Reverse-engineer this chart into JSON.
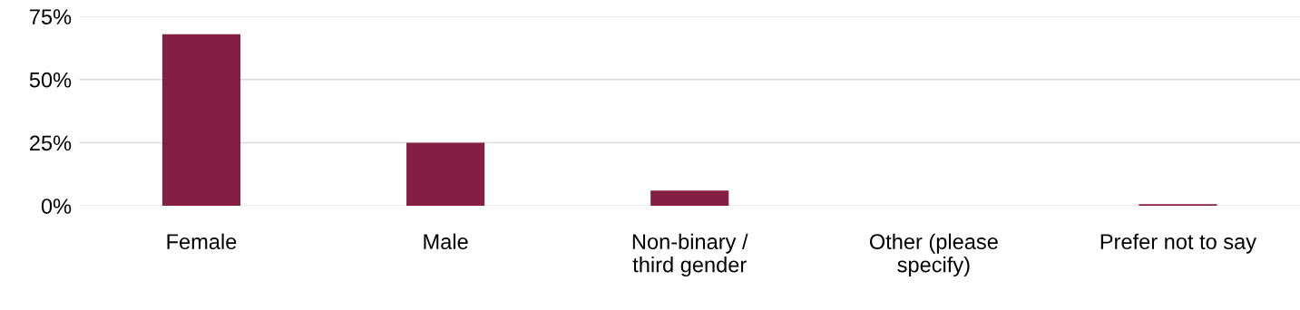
{
  "chart_data": {
    "type": "bar",
    "categories": [
      "Female",
      "Male",
      "Non-binary /\nthird gender",
      "Other (please\nspecify)",
      "Prefer not to say"
    ],
    "values": [
      68,
      25,
      6,
      null,
      0.7
    ],
    "color": "#841e42",
    "ylim": [
      0,
      75
    ],
    "yticks": [
      {
        "value": 0,
        "label": "0%"
      },
      {
        "value": 25,
        "label": "25%"
      },
      {
        "value": 50,
        "label": "50%"
      },
      {
        "value": 75,
        "label": "75%"
      }
    ],
    "grid": "y",
    "legend": false
  }
}
